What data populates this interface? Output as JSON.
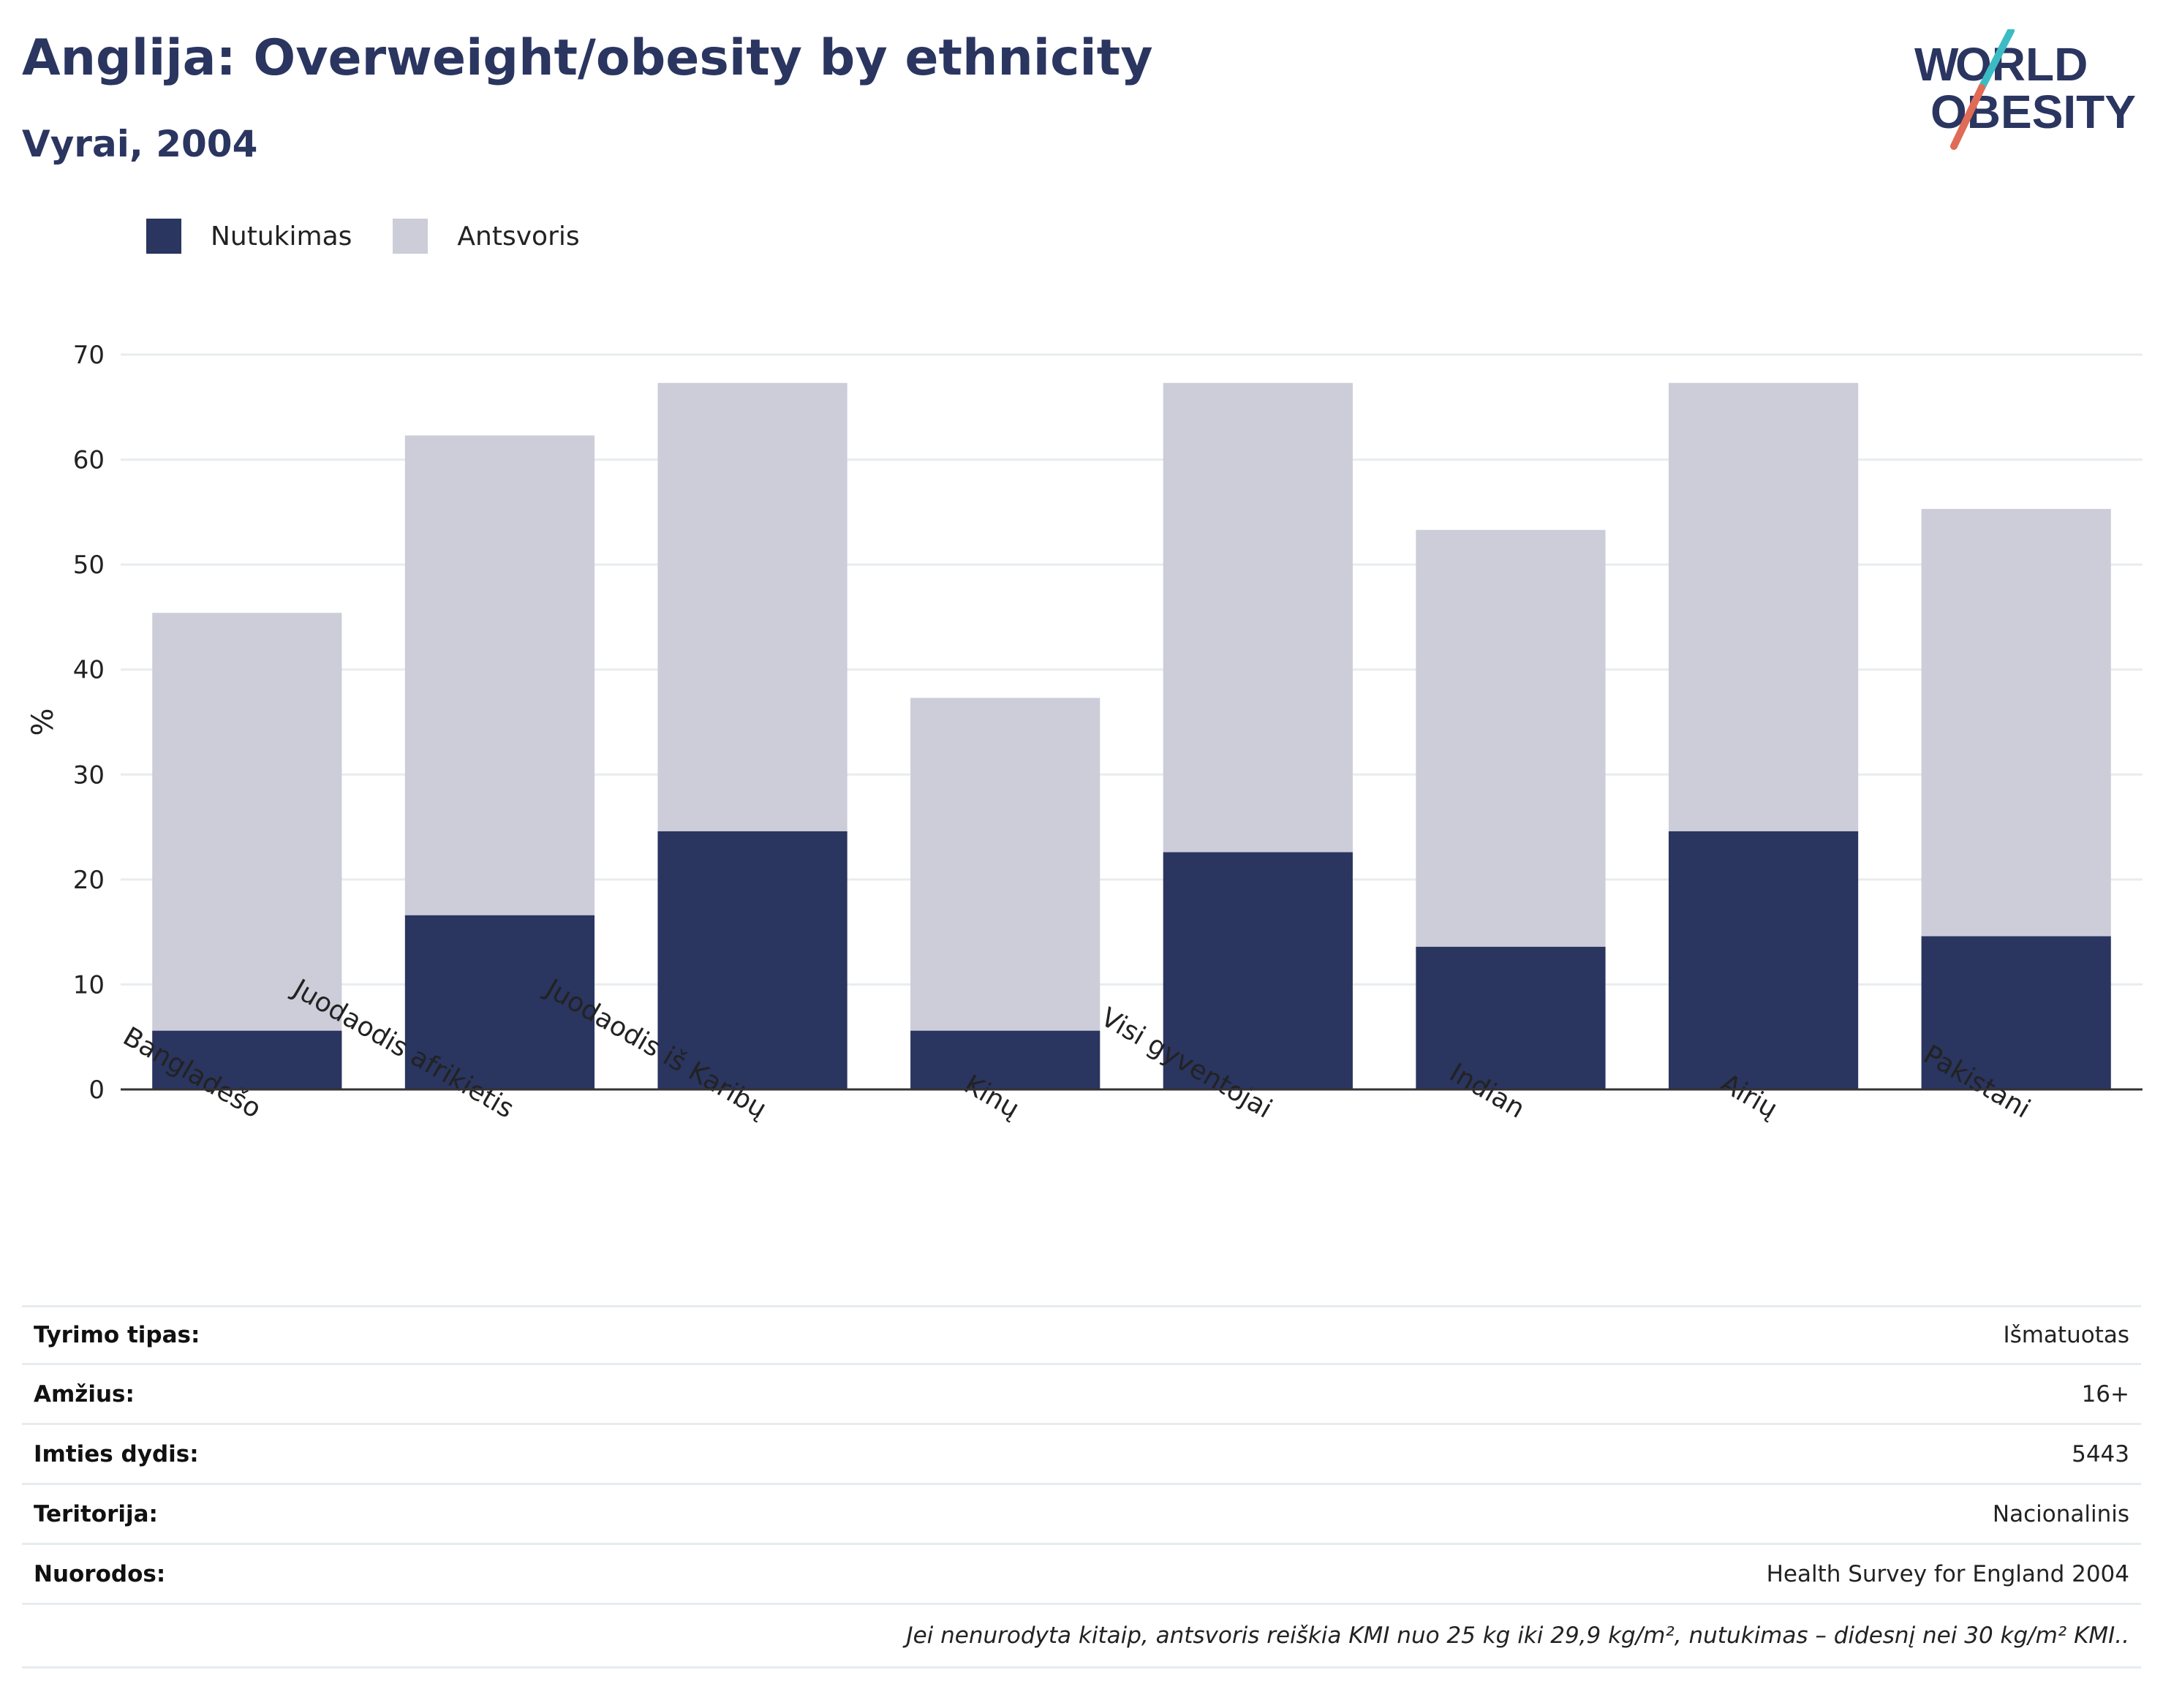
{
  "header": {
    "title": "Anglija: Overweight/obesity by ethnicity",
    "subtitle": "Vyrai, 2004"
  },
  "logo": {
    "line1": "WORLD",
    "line2": "OBESITY"
  },
  "colors": {
    "obesity": "#2a3560",
    "overweight": "#cccdd9",
    "accent_teal": "#3bbcc4",
    "accent_red": "#e06b57"
  },
  "chart_data": {
    "type": "bar",
    "stacked": true,
    "categories": [
      "Bangladešo",
      "Juodaodis afrikietis",
      "Juodaodis iš Karibų",
      "Kinų",
      "Visi gyventojai",
      "Indian",
      "Airių",
      "Pakistani"
    ],
    "series": [
      {
        "name": "Nutukimas",
        "values": [
          5.6,
          16.6,
          24.6,
          5.6,
          22.6,
          13.6,
          24.6,
          14.6
        ]
      },
      {
        "name": "Antsvoris",
        "values": [
          39.8,
          45.7,
          42.7,
          31.7,
          44.7,
          39.7,
          42.7,
          40.7
        ]
      }
    ],
    "ylabel": "%",
    "ylim": [
      0,
      70
    ],
    "yticks": [
      0,
      10,
      20,
      30,
      40,
      50,
      60,
      70
    ],
    "grid": true,
    "legend_position": "top-left"
  },
  "footer": {
    "rows": [
      {
        "label": "Tyrimo tipas:",
        "value": "Išmatuotas"
      },
      {
        "label": "Amžius:",
        "value": "16+"
      },
      {
        "label": "Imties dydis:",
        "value": "5443"
      },
      {
        "label": "Teritorija:",
        "value": "Nacionalinis"
      },
      {
        "label": "Nuorodos:",
        "value": "Health Survey for England 2004"
      }
    ],
    "note": "Jei nenurodyta kitaip, antsvoris reiškia KMI nuo 25 kg iki 29,9 kg/m², nutukimas – didesnį nei 30 kg/m² KMI.."
  }
}
